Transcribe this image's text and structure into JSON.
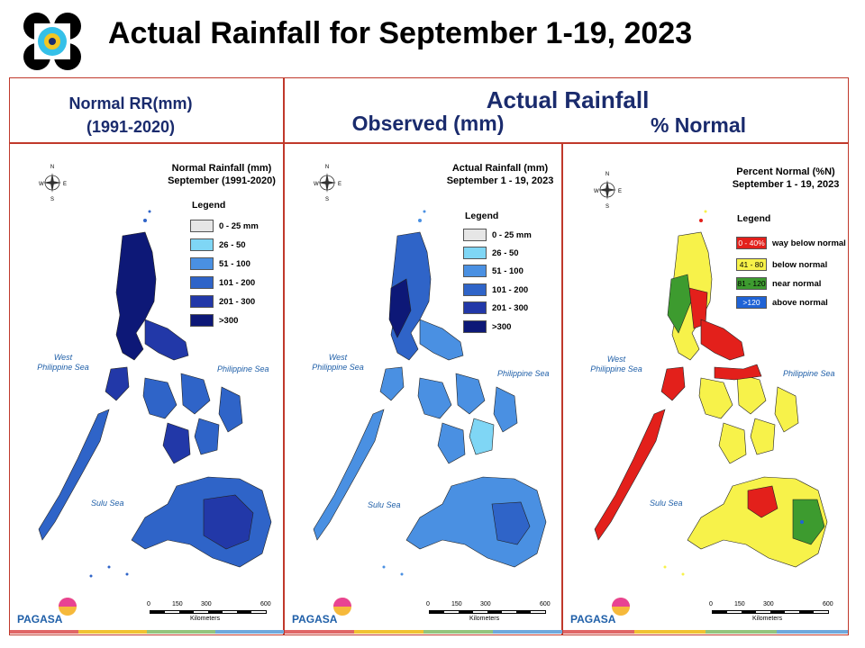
{
  "slide": {
    "title": "Actual Rainfall for September 1-19, 2023",
    "header_normal": "Normal RR(mm)\n(1991-2020)",
    "header_normal_line1": "Normal RR(mm)",
    "header_normal_line2": "(1991-2020)",
    "header_actual": "Actual Rainfall",
    "header_observed": "Observed (mm)",
    "header_percent": "% Normal"
  },
  "panels": [
    {
      "title_line1": "Normal Rainfall (mm)",
      "title_line2": "September (1991-2020)",
      "legend_title": "Legend",
      "legend": [
        {
          "label": "0 - 25 mm",
          "color": "#e6e6e6"
        },
        {
          "label": "26 - 50",
          "color": "#7fd6f5"
        },
        {
          "label": "51 - 100",
          "color": "#4a90e2"
        },
        {
          "label": "101 - 200",
          "color": "#2f64c8"
        },
        {
          "label": "201 - 300",
          "color": "#2238a8"
        },
        {
          "label": ">300",
          "color": "#0d1877"
        }
      ]
    },
    {
      "title_line1": "Actual Rainfall (mm)",
      "title_line2": "September 1 - 19, 2023",
      "legend_title": "Legend",
      "legend": [
        {
          "label": "0 - 25 mm",
          "color": "#e6e6e6"
        },
        {
          "label": "26 - 50",
          "color": "#7fd6f5"
        },
        {
          "label": "51 - 100",
          "color": "#4a90e2"
        },
        {
          "label": "101 - 200",
          "color": "#2f64c8"
        },
        {
          "label": "201 - 300",
          "color": "#2238a8"
        },
        {
          "label": ">300",
          "color": "#0d1877"
        }
      ]
    },
    {
      "title_line1": "Percent Normal (%N)",
      "title_line2": "September 1 - 19, 2023",
      "legend_title": "Legend",
      "legend": [
        {
          "swatch_text": "0 - 40%",
          "label": "way below normal",
          "color": "#e3201b",
          "text_color": "#ffffff"
        },
        {
          "swatch_text": "41 - 80",
          "label": "below normal",
          "color": "#f7f24a",
          "text_color": "#000000"
        },
        {
          "swatch_text": "81 - 120",
          "label": "near normal",
          "color": "#3d9b2f",
          "text_color": "#000000"
        },
        {
          "swatch_text": ">120",
          "label": "above normal",
          "color": "#1f63d6",
          "text_color": "#ffffff"
        }
      ]
    }
  ],
  "map_labels": {
    "west_sea_line1": "West",
    "west_sea_line2": "Philippine Sea",
    "philippine_sea": "Philippine Sea",
    "sulu_sea": "Sulu Sea",
    "compass_n": "N",
    "compass_s": "S",
    "compass_w": "W",
    "compass_e": "E"
  },
  "scale": {
    "ticks": [
      "0",
      "150",
      "300",
      "600"
    ],
    "unit": "Kilometers"
  },
  "colors": {
    "frame": "#c0392b",
    "header_text": "#1a2b6d",
    "bottom_bar": [
      "#e06666",
      "#f1c232",
      "#93c47d",
      "#6fa8dc"
    ]
  },
  "pagasa_logo": {
    "text": "PAGASA"
  }
}
